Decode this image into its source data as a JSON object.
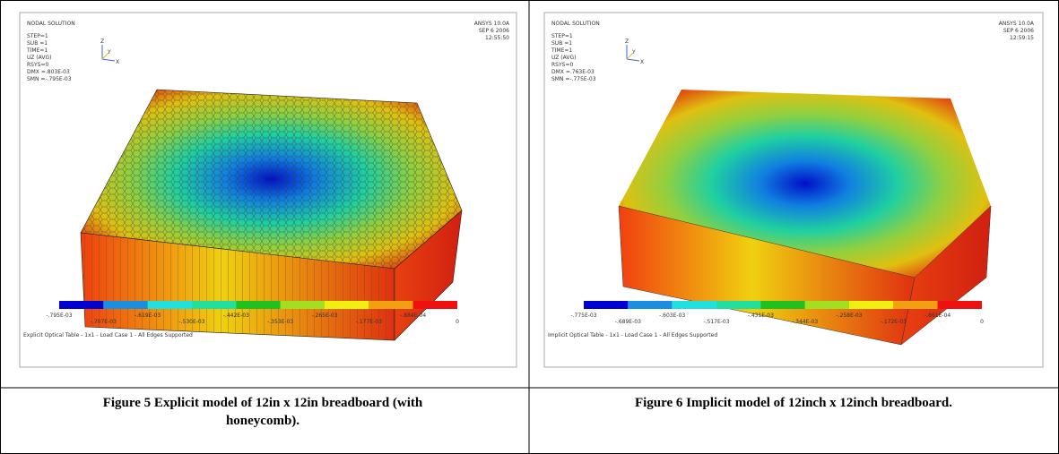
{
  "figures": [
    {
      "plot": {
        "title": "NODAL SOLUTION",
        "info": [
          "STEP=1",
          "SUB =1",
          "TIME=1",
          "UZ      (AVG)",
          "RSYS=0",
          "DMX =.803E-03",
          "SMN =-.795E-03"
        ],
        "program": "ANSYS 10.0A",
        "date": "SEP  6 2006",
        "time": "12:55:50",
        "axes": [
          "Z",
          "Y",
          "X"
        ],
        "legend": [
          "-.795E-03",
          "-.707E-03",
          "-.619E-03",
          "-.530E-03",
          "-.442E-03",
          "-.353E-03",
          "-.265E-03",
          "-.177E-03",
          "-.884E-04",
          "0"
        ],
        "footer": "Explicit Optical Table - 1x1 - Load Case 1 - All Edges Supported"
      },
      "caption": "Figure 5 Explicit model of 12in x 12in breadboard (with honeycomb)."
    },
    {
      "plot": {
        "title": "NODAL SOLUTION",
        "info": [
          "STEP=1",
          "SUB =1",
          "TIME=1",
          "UZ      (AVG)",
          "RSYS=0",
          "DMX =.763E-03",
          "SMN =-.775E-03"
        ],
        "program": "ANSYS 10.0A",
        "date": "SEP  6 2006",
        "time": "12:59:15",
        "axes": [
          "Z",
          "Y",
          "X"
        ],
        "legend": [
          "-.775E-03",
          "-.689E-03",
          "-.603E-03",
          "-.517E-03",
          "-.431E-03",
          "-.344E-03",
          "-.258E-03",
          "-.172E-03",
          "-.861E-04",
          "0"
        ],
        "footer": "Implicit Optical Table - 1x1 - Load Case 1 - All Edges Supported"
      },
      "caption": "Figure 6 Implicit model of 12inch x 12inch breadboard."
    }
  ]
}
